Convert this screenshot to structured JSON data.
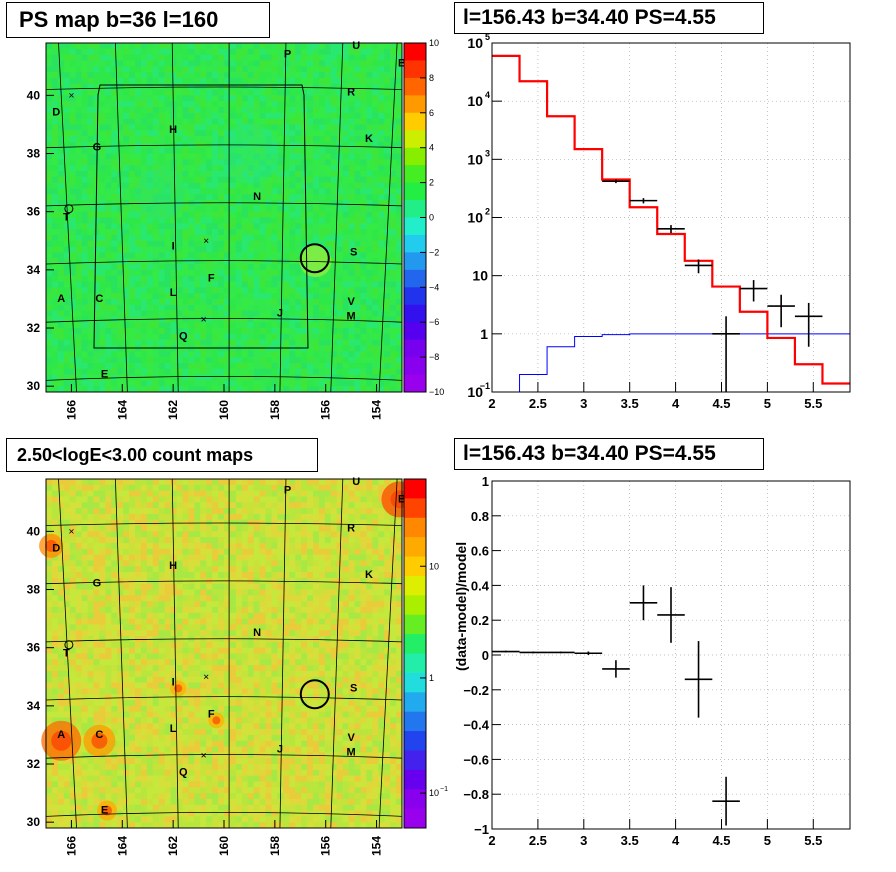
{
  "panels": {
    "top_left": {
      "title": "PS map b=36 l=160",
      "x_ticks": [
        "166",
        "164",
        "162",
        "160",
        "158",
        "156",
        "154"
      ],
      "y_ticks": [
        "30",
        "32",
        "34",
        "36",
        "38",
        "40"
      ],
      "colorbar_ticks": [
        "10",
        "8",
        "6",
        "4",
        "2",
        "0",
        "−2",
        "−4",
        "−6",
        "−8",
        "−10"
      ],
      "source_labels": [
        "P",
        "U",
        "B",
        "R",
        "D",
        "H",
        "K",
        "G",
        "N",
        "T",
        "I",
        "S",
        "F",
        "A",
        "C",
        "L",
        "V",
        "M",
        "J",
        "Q",
        "E"
      ]
    },
    "top_right": {
      "title": "l=156.43 b=34.40 PS=4.55",
      "x_ticks": [
        "2",
        "2.5",
        "3",
        "3.5",
        "4",
        "4.5",
        "5",
        "5.5"
      ],
      "y_ticks": [
        "10^-1",
        "1",
        "10",
        "10^2",
        "10^3",
        "10^4",
        "10^5"
      ],
      "y_tick_labels": [
        "10",
        "1",
        "10",
        "10",
        "10",
        "10",
        "10"
      ],
      "y_tick_exponents": [
        "−1",
        "",
        "",
        "2",
        "3",
        "4",
        "5"
      ]
    },
    "bottom_left": {
      "title": "2.50<logE<3.00 count maps",
      "x_ticks": [
        "166",
        "164",
        "162",
        "160",
        "158",
        "156",
        "154"
      ],
      "y_ticks": [
        "30",
        "32",
        "34",
        "36",
        "38",
        "40"
      ],
      "colorbar_ticks": [
        "10",
        "1",
        "10"
      ],
      "colorbar_minor_exp": "−1",
      "source_labels": [
        "P",
        "U",
        "B",
        "R",
        "D",
        "H",
        "K",
        "G",
        "N",
        "T",
        "I",
        "S",
        "F",
        "A",
        "C",
        "L",
        "V",
        "M",
        "J",
        "Q",
        "E"
      ]
    },
    "bottom_right": {
      "title": "l=156.43 b=34.40 PS=4.55",
      "ylabel": "(data-model)/model",
      "x_ticks": [
        "2",
        "2.5",
        "3",
        "3.5",
        "4",
        "4.5",
        "5",
        "5.5"
      ],
      "y_ticks": [
        "−1",
        "−0.8",
        "−0.6",
        "−0.4",
        "−0.2",
        "0",
        "0.2",
        "0.4",
        "0.6",
        "0.8",
        "1"
      ]
    }
  },
  "colors": {
    "ps_map_bg": "#2ee84a",
    "count_map_bg": "#c8e23a",
    "model_line": "#ff0000",
    "background_line": "#0000ff",
    "data": "#000000",
    "grid": "#aaaaaa"
  },
  "chart_data": [
    {
      "type": "heatmap",
      "title": "PS map b=36 l=160",
      "x_range": [
        167,
        153
      ],
      "y_range": [
        29.8,
        41.8
      ],
      "color_range": [
        -10,
        10
      ],
      "circle_center": [
        156.43,
        34.4
      ]
    },
    {
      "type": "line",
      "title": "l=156.43 b=34.40 PS=4.55",
      "log_y": true,
      "xlim": [
        2,
        5.9
      ],
      "ylim": [
        0.1,
        100000
      ],
      "grid": true,
      "model_steps": {
        "edges": [
          2,
          2.3,
          2.6,
          2.9,
          3.2,
          3.5,
          3.8,
          4.1,
          4.4,
          4.7,
          5.0,
          5.3,
          5.6,
          5.9
        ],
        "values": [
          60000,
          22000,
          5500,
          1500,
          450,
          150,
          52,
          18,
          6.5,
          2.4,
          0.85,
          0.3,
          0.14
        ]
      },
      "background_steps": {
        "edges": [
          2.3,
          2.6,
          2.9,
          3.2,
          3.5,
          3.8,
          4.1,
          4.4,
          4.7,
          5.0,
          5.3,
          5.6,
          5.9
        ],
        "values": [
          0.2,
          0.6,
          0.9,
          0.97,
          1,
          1,
          1,
          1,
          1,
          1,
          1,
          1
        ]
      },
      "data_points": [
        {
          "x": 3.35,
          "y": 420,
          "xerr": 0.15,
          "ylo": 390,
          "yhi": 450
        },
        {
          "x": 3.65,
          "y": 195,
          "xerr": 0.15,
          "ylo": 175,
          "yhi": 215
        },
        {
          "x": 3.95,
          "y": 64,
          "xerr": 0.15,
          "ylo": 54,
          "yhi": 74
        },
        {
          "x": 4.25,
          "y": 15,
          "xerr": 0.15,
          "ylo": 11,
          "yhi": 19
        },
        {
          "x": 4.55,
          "y": 1,
          "xerr": 0.15,
          "ylo": 0.1,
          "yhi": 2
        },
        {
          "x": 4.85,
          "y": 6,
          "xerr": 0.15,
          "ylo": 3.6,
          "yhi": 8.4
        },
        {
          "x": 5.15,
          "y": 3,
          "xerr": 0.15,
          "ylo": 1.3,
          "yhi": 4.7
        },
        {
          "x": 5.45,
          "y": 2,
          "xerr": 0.15,
          "ylo": 0.6,
          "yhi": 3.4
        }
      ]
    },
    {
      "type": "heatmap",
      "title": "2.50<logE<3.00 count maps",
      "x_range": [
        167,
        153
      ],
      "y_range": [
        29.8,
        41.8
      ],
      "log_color": true,
      "circle_center": [
        156.43,
        34.4
      ]
    },
    {
      "type": "scatter",
      "title": "l=156.43 b=34.40 PS=4.55",
      "ylabel": "(data-model)/model",
      "xlim": [
        2,
        5.9
      ],
      "ylim": [
        -1,
        1
      ],
      "grid": true,
      "points": [
        {
          "x": 2.15,
          "y": 0.02,
          "xerr": 0.15,
          "yerr": 0.005
        },
        {
          "x": 2.45,
          "y": 0.015,
          "xerr": 0.15,
          "yerr": 0.005
        },
        {
          "x": 2.75,
          "y": 0.015,
          "xerr": 0.15,
          "yerr": 0.005
        },
        {
          "x": 3.05,
          "y": 0.01,
          "xerr": 0.15,
          "yerr": 0.01
        },
        {
          "x": 3.35,
          "y": -0.08,
          "xerr": 0.15,
          "yerr": 0.05
        },
        {
          "x": 3.65,
          "y": 0.3,
          "xerr": 0.15,
          "yerr": 0.1
        },
        {
          "x": 3.95,
          "y": 0.23,
          "xerr": 0.15,
          "yerr": 0.16
        },
        {
          "x": 4.25,
          "y": -0.14,
          "xerr": 0.15,
          "yerr": 0.22
        },
        {
          "x": 4.55,
          "y": -0.84,
          "xerr": 0.15,
          "yerr": 0.14
        }
      ]
    }
  ]
}
